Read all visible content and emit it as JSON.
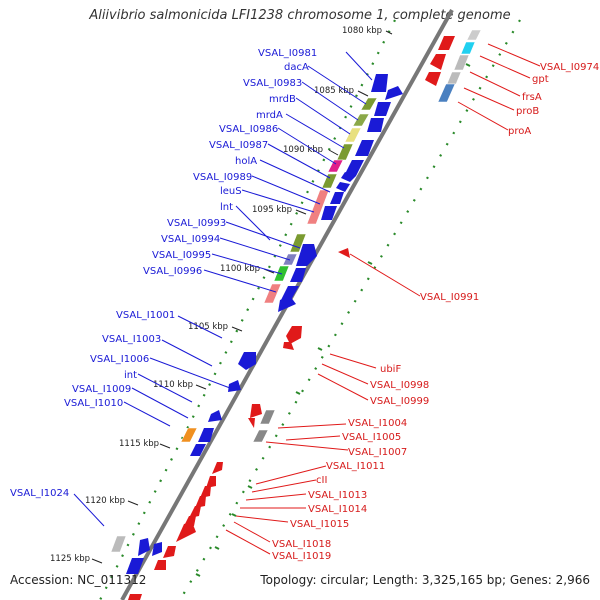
{
  "title": "Aliivibrio salmonicida LFI1238 chromosome 1, complete genome",
  "footer": {
    "accession": "Accession: NC_011312",
    "topology": "Topology: circular; Length: 3,325,165 bp; Genes: 2,966"
  },
  "kbp_marks": [
    "1080 kbp",
    "1085 kbp",
    "1090 kbp",
    "1095 kbp",
    "1100 kbp",
    "1105 kbp",
    "1110 kbp",
    "1115 kbp",
    "1120 kbp",
    "1125 kbp"
  ],
  "left_labels": [
    "VSAL_I0981",
    "dacA",
    "VSAL_I0983",
    "mrdB",
    "mrdA",
    "VSAL_I0986",
    "VSAL_I0987",
    "holA",
    "VSAL_I0989",
    "leuS",
    "lnt",
    "VSAL_I0993",
    "VSAL_I0994",
    "VSAL_I0995",
    "VSAL_I0996",
    "VSAL_I1001",
    "VSAL_I1003",
    "VSAL_I1006",
    "int",
    "VSAL_I1009",
    "VSAL_I1010",
    "VSAL_I1024"
  ],
  "right_labels": [
    "VSAL_I0974",
    "gpt",
    "frsA",
    "proB",
    "proA",
    "VSAL_I0991",
    "ubiF",
    "VSAL_I0998",
    "VSAL_I0999",
    "VSAL_I1004",
    "VSAL_I1005",
    "VSAL_I1007",
    "VSAL_I1011",
    "cII",
    "VSAL_I1013",
    "VSAL_I1014",
    "VSAL_I1015",
    "VSAL_I1018",
    "VSAL_I1019"
  ],
  "colors": {
    "forward_strand": "#1a1ad6",
    "reverse_strand": "#e01a1a",
    "backbone": "#777777",
    "gc_dots": "#2a8a2a",
    "cog_olive": "#7a9a30",
    "cog_salmon": "#f08080",
    "cog_pink": "#e0208a",
    "cog_green": "#30c030",
    "cog_purple": "#8080c0",
    "cog_yellow": "#e8e080",
    "cog_grey": "#bbbbbb",
    "cog_orange": "#f09020",
    "cog_steel": "#4a80c0",
    "cog_cyan": "#20d0f0"
  }
}
